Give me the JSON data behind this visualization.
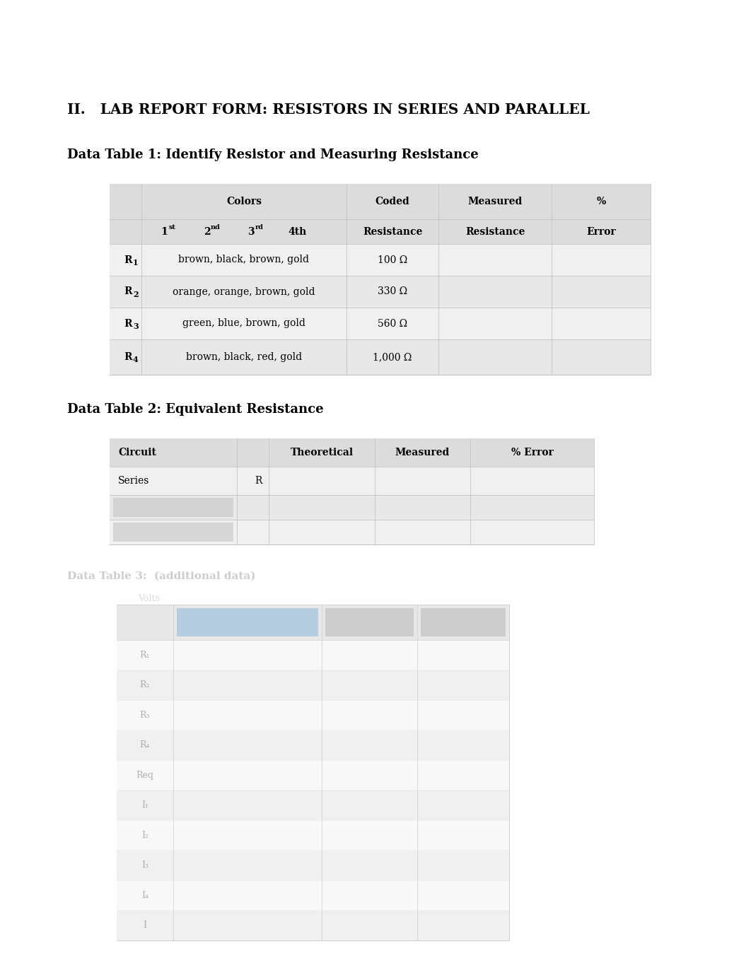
{
  "title": "II.   LAB REPORT FORM: RESISTORS IN SERIES AND PARALLEL",
  "table1_title": "Data Table 1: Identify Resistor and Measuring Resistance",
  "table1_rows": [
    [
      "R",
      "1",
      "brown, black, brown, gold",
      "100 Ω"
    ],
    [
      "R",
      "2",
      "orange, orange, brown, gold",
      "330 Ω"
    ],
    [
      "R",
      "3",
      "green, blue, brown, gold",
      "560 Ω"
    ],
    [
      "R",
      "4",
      "brown, black, red, gold",
      "1,000 Ω"
    ]
  ],
  "table2_title": "Data Table 2: Equivalent Resistance",
  "bg_color": "#ffffff",
  "table_outer_bg": "#e8e8e8",
  "table_cell_bg": "#f2f2f2",
  "table_header_bg": "#e0e0e0"
}
